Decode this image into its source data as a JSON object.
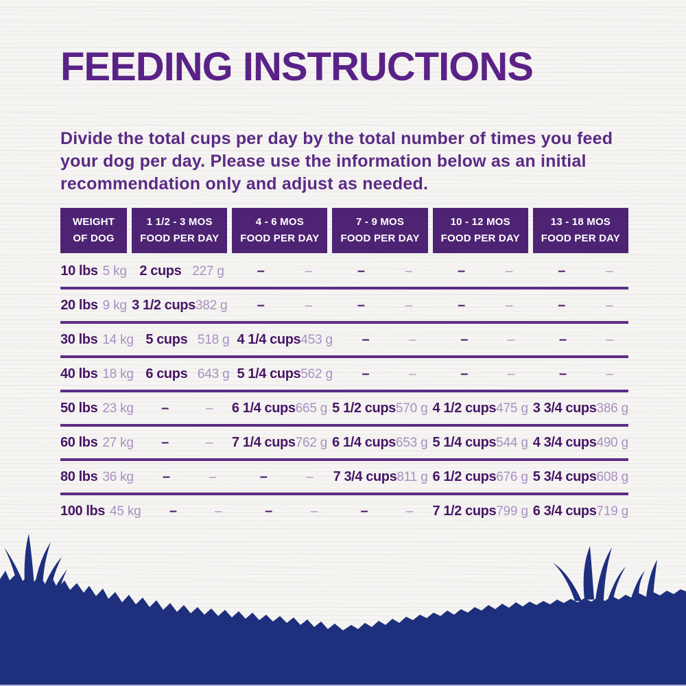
{
  "title": "FEEDING INSTRUCTIONS",
  "intro": "Divide the total cups per day by the total number of times you feed your dog per day. Please use the information below as an initial recommendation only and adjust as needed.",
  "colors": {
    "title_purple": "#5a2287",
    "body_purple": "#5b2a85",
    "header_bg": "#4e2373",
    "value_dark": "#471566",
    "value_light": "#a98fc2",
    "separator": "#5c2d87",
    "grass_navy": "#1e2f7d"
  },
  "table": {
    "headers": [
      {
        "line1": "WEIGHT",
        "line2": "OF DOG"
      },
      {
        "line1": "1 1/2 - 3 MOS",
        "line2": "FOOD PER DAY"
      },
      {
        "line1": "4 - 6 MOS",
        "line2": "FOOD PER DAY"
      },
      {
        "line1": "7 - 9 MOS",
        "line2": "FOOD PER DAY"
      },
      {
        "line1": "10 - 12 MOS",
        "line2": "FOOD PER DAY"
      },
      {
        "line1": "13 - 18 MOS",
        "line2": "FOOD PER DAY"
      }
    ],
    "rows": [
      {
        "lbs": "10 lbs",
        "kg": "5 kg",
        "cells": [
          {
            "cups": "2 cups",
            "g": "227 g"
          },
          {
            "cups": "–",
            "g": "–"
          },
          {
            "cups": "–",
            "g": "–"
          },
          {
            "cups": "–",
            "g": "–"
          },
          {
            "cups": "–",
            "g": "–"
          }
        ]
      },
      {
        "lbs": "20 lbs",
        "kg": "9 kg",
        "cells": [
          {
            "cups": "3 1/2 cups",
            "g": "382 g"
          },
          {
            "cups": "–",
            "g": "–"
          },
          {
            "cups": "–",
            "g": "–"
          },
          {
            "cups": "–",
            "g": "–"
          },
          {
            "cups": "–",
            "g": "–"
          }
        ]
      },
      {
        "lbs": "30 lbs",
        "kg": "14 kg",
        "cells": [
          {
            "cups": "5 cups",
            "g": "518 g"
          },
          {
            "cups": "4 1/4 cups",
            "g": "453 g"
          },
          {
            "cups": "–",
            "g": "–"
          },
          {
            "cups": "–",
            "g": "–"
          },
          {
            "cups": "–",
            "g": "–"
          }
        ]
      },
      {
        "lbs": "40 lbs",
        "kg": "18 kg",
        "cells": [
          {
            "cups": "6 cups",
            "g": "643 g"
          },
          {
            "cups": "5 1/4 cups",
            "g": "562 g"
          },
          {
            "cups": "–",
            "g": "–"
          },
          {
            "cups": "–",
            "g": "–"
          },
          {
            "cups": "–",
            "g": "–"
          }
        ]
      },
      {
        "lbs": "50 lbs",
        "kg": "23 kg",
        "cells": [
          {
            "cups": "–",
            "g": "–"
          },
          {
            "cups": "6 1/4 cups",
            "g": "665 g"
          },
          {
            "cups": "5 1/2 cups",
            "g": "570 g"
          },
          {
            "cups": "4 1/2 cups",
            "g": "475 g"
          },
          {
            "cups": "3 3/4 cups",
            "g": "386 g"
          }
        ]
      },
      {
        "lbs": "60 lbs",
        "kg": "27 kg",
        "cells": [
          {
            "cups": "–",
            "g": "–"
          },
          {
            "cups": "7 1/4 cups",
            "g": "762 g"
          },
          {
            "cups": "6 1/4 cups",
            "g": "653 g"
          },
          {
            "cups": "5 1/4 cups",
            "g": "544 g"
          },
          {
            "cups": "4 3/4 cups",
            "g": "490 g"
          }
        ]
      },
      {
        "lbs": "80 lbs",
        "kg": "36 kg",
        "cells": [
          {
            "cups": "–",
            "g": "–"
          },
          {
            "cups": "–",
            "g": "–"
          },
          {
            "cups": "7 3/4 cups",
            "g": "811 g"
          },
          {
            "cups": "6 1/2 cups",
            "g": "676 g"
          },
          {
            "cups": "5 3/4 cups",
            "g": "608 g"
          }
        ]
      },
      {
        "lbs": "100 lbs",
        "kg": "45 kg",
        "cells": [
          {
            "cups": "–",
            "g": "–"
          },
          {
            "cups": "–",
            "g": "–"
          },
          {
            "cups": "–",
            "g": "–"
          },
          {
            "cups": "7 1/2 cups",
            "g": "799 g"
          },
          {
            "cups": "6 3/4 cups",
            "g": "719 g"
          }
        ]
      }
    ]
  }
}
